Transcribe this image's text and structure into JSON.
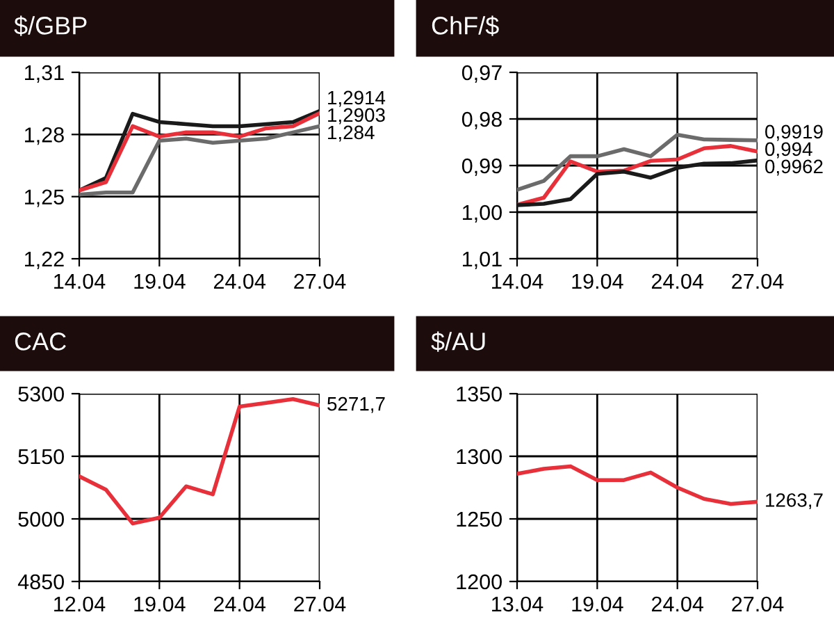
{
  "chart_data": [
    {
      "type": "line",
      "title": "$/GBP",
      "categories": [
        "14.04",
        null,
        null,
        "19.04",
        null,
        null,
        "24.04",
        null,
        null,
        "27.04"
      ],
      "ylim": [
        1.22,
        1.31
      ],
      "yticks": [
        {
          "value": 1.22,
          "label": "1,22"
        },
        {
          "value": 1.25,
          "label": "1,25"
        },
        {
          "value": 1.28,
          "label": "1,28"
        },
        {
          "value": 1.31,
          "label": "1,31"
        }
      ],
      "grid": true,
      "annotations": [
        "1,2914",
        "1,2903",
        "1,284"
      ],
      "series": [
        {
          "color": "#1a1a1a",
          "values": [
            1.253,
            1.259,
            1.29,
            1.286,
            1.285,
            1.284,
            1.284,
            1.285,
            1.286,
            1.2914
          ]
        },
        {
          "color": "#e8303a",
          "values": [
            1.253,
            1.257,
            1.284,
            1.279,
            1.281,
            1.281,
            1.279,
            1.283,
            1.284,
            1.2903
          ]
        },
        {
          "color": "#6b6b6b",
          "values": [
            1.251,
            1.252,
            1.252,
            1.277,
            1.278,
            1.276,
            1.277,
            1.278,
            1.281,
            1.284
          ]
        }
      ]
    },
    {
      "type": "line",
      "title": "ChF/$",
      "categories": [
        "14.04",
        null,
        null,
        "19.04",
        null,
        null,
        "24.04",
        null,
        null,
        "27.04"
      ],
      "ylim": [
        1.01,
        0.97
      ],
      "yticks": [
        {
          "value": 0.97,
          "label": "0,97"
        },
        {
          "value": 0.98,
          "label": "0,98"
        },
        {
          "value": 0.99,
          "label": "0,99"
        },
        {
          "value": 1.0,
          "label": "1,00"
        },
        {
          "value": 1.01,
          "label": "1,01"
        }
      ],
      "grid": true,
      "annotations": [
        "0,9919",
        "0,994",
        "0,9962"
      ],
      "series": [
        {
          "color": "#6b6b6b",
          "values": [
            0.9952,
            0.9933,
            0.988,
            0.988,
            0.9865,
            0.988,
            0.9834,
            0.9844,
            0.9845,
            0.9846
          ]
        },
        {
          "color": "#e8303a",
          "values": [
            0.9984,
            0.9969,
            0.9891,
            0.9913,
            0.9911,
            0.989,
            0.9887,
            0.9863,
            0.9858,
            0.987
          ]
        },
        {
          "color": "#1a1a1a",
          "values": [
            0.9985,
            0.9982,
            0.9972,
            0.9918,
            0.9913,
            0.9926,
            0.9905,
            0.9896,
            0.9895,
            0.9889
          ]
        }
      ]
    },
    {
      "type": "line",
      "title": "CAC",
      "categories": [
        "12.04",
        null,
        null,
        "19.04",
        null,
        null,
        "24.04",
        null,
        null,
        "27.04"
      ],
      "ylim": [
        4850,
        5300
      ],
      "yticks": [
        4850,
        5000,
        5150,
        5300
      ],
      "grid": true,
      "annotations": [
        "5271,7"
      ],
      "series": [
        {
          "color": "#e8303a",
          "values": [
            5102,
            5070,
            4989,
            5003,
            5078,
            5059,
            5269,
            5278,
            5287,
            5271.7
          ]
        }
      ]
    },
    {
      "type": "line",
      "title": "$/AU",
      "categories": [
        "13.04",
        null,
        null,
        "19.04",
        null,
        null,
        "24.04",
        null,
        null,
        "27.04"
      ],
      "ylim": [
        1200,
        1350
      ],
      "yticks": [
        1200,
        1250,
        1300,
        1350
      ],
      "grid": true,
      "annotations": [
        "1263,7"
      ],
      "series": [
        {
          "color": "#e8303a",
          "values": [
            1286,
            1290,
            1292,
            1281,
            1281,
            1287,
            1275,
            1266,
            1262,
            1263.7
          ]
        }
      ]
    }
  ]
}
